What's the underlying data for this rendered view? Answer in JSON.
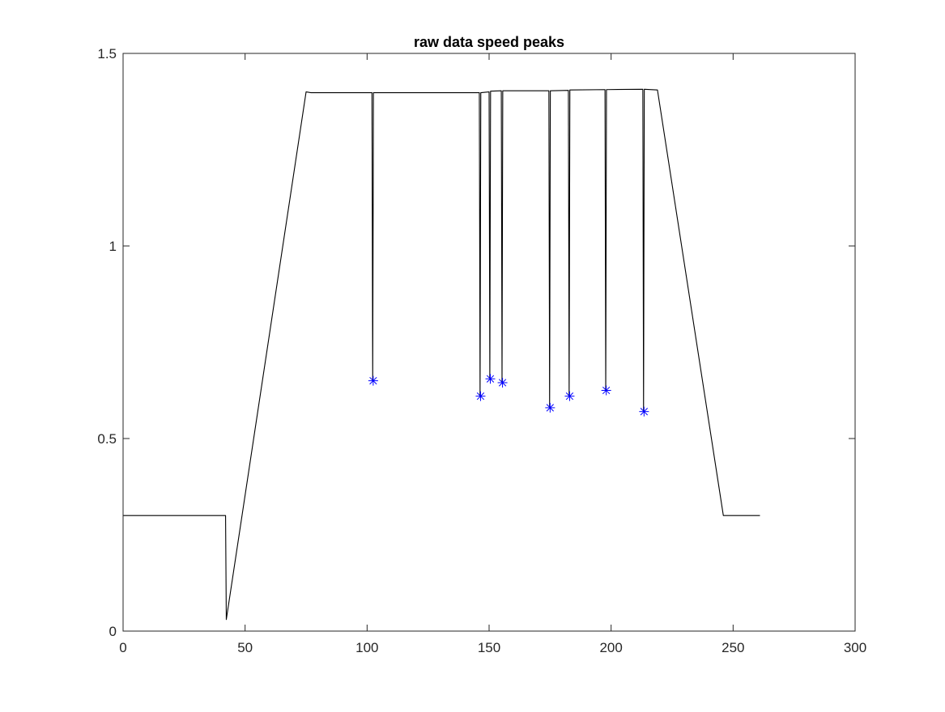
{
  "chart_data": {
    "type": "line",
    "title": "raw data speed peaks",
    "xlabel": "",
    "ylabel": "",
    "xlim": [
      0,
      300
    ],
    "ylim": [
      0,
      1.5
    ],
    "grid": false,
    "x_ticks": [
      0,
      50,
      100,
      150,
      200,
      250,
      300
    ],
    "x_tick_labels": [
      "0",
      "50",
      "100",
      "150",
      "200",
      "250",
      "300"
    ],
    "y_ticks": [
      0,
      0.5,
      1,
      1.5
    ],
    "y_tick_labels": [
      "0",
      "0.5",
      "1",
      "1.5"
    ],
    "series": [
      {
        "style": "line",
        "color": "#000000",
        "x": [
          0,
          42,
          42,
          42.3,
          75,
          77,
          102,
          102.3,
          102.6,
          146,
          146.3,
          146.6,
          150,
          150.3,
          150.6,
          155,
          155.3,
          155.6,
          174.5,
          174.8,
          175.1,
          182.5,
          182.8,
          183.1,
          197.5,
          197.8,
          198.1,
          213,
          213.3,
          213.6,
          219,
          246,
          261
        ],
        "y": [
          0.3,
          0.3,
          0.3,
          0.03,
          1.4,
          1.398,
          1.398,
          0.65,
          1.398,
          1.398,
          0.61,
          1.398,
          1.4,
          0.655,
          1.402,
          1.403,
          0.645,
          1.403,
          1.403,
          0.58,
          1.403,
          1.404,
          0.61,
          1.405,
          1.406,
          0.625,
          1.406,
          1.407,
          0.57,
          1.407,
          1.405,
          0.3,
          0.3
        ]
      },
      {
        "style": "markers",
        "marker": "asterisk",
        "color": "#0000ff",
        "x": [
          102.5,
          146.5,
          150.5,
          155.5,
          175,
          183,
          198,
          213.5
        ],
        "y": [
          0.65,
          0.61,
          0.655,
          0.645,
          0.58,
          0.61,
          0.625,
          0.57
        ]
      }
    ]
  }
}
